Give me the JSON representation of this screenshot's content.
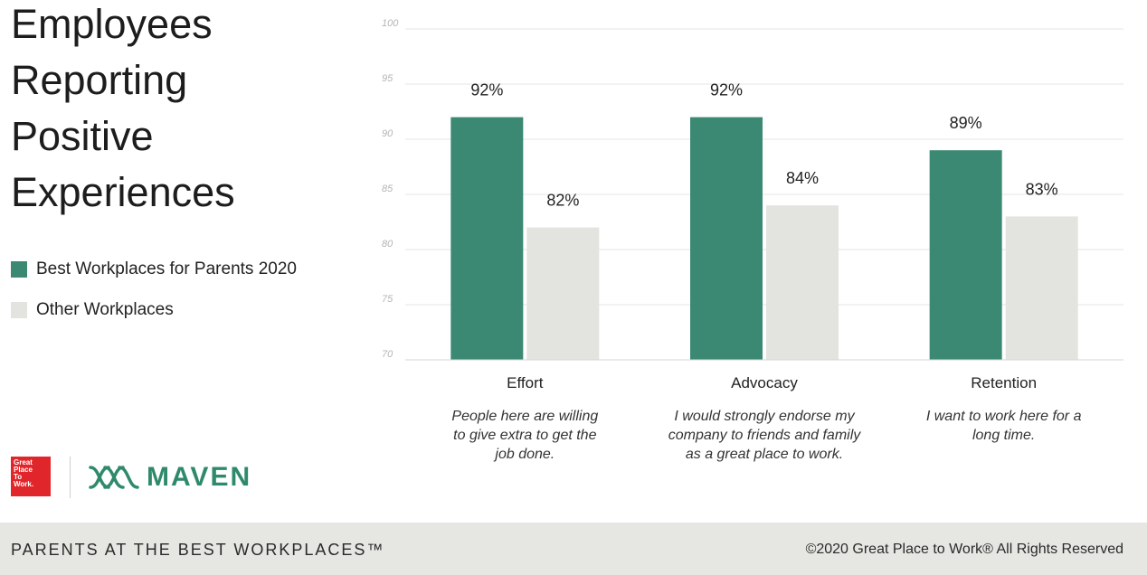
{
  "title_lines": [
    "Employees",
    "Reporting",
    "Positive",
    "Experiences"
  ],
  "legend": [
    {
      "label": "Best Workplaces for Parents 2020",
      "color": "#3b8873"
    },
    {
      "label": "Other Workplaces",
      "color": "#e3e3df"
    }
  ],
  "chart_data": {
    "type": "bar",
    "categories": [
      "Effort",
      "Advocacy",
      "Retention"
    ],
    "descriptions": [
      [
        "People here are willing",
        "to give extra to get the",
        "job done."
      ],
      [
        "I would strongly endorse my",
        "company to friends and family",
        "as a great place to work."
      ],
      [
        "I want to work here for a",
        "long time."
      ]
    ],
    "series": [
      {
        "name": "Best Workplaces for Parents 2020",
        "values": [
          92,
          92,
          89
        ],
        "labels": [
          "92%",
          "92%",
          "89%"
        ],
        "color": "#3b8873"
      },
      {
        "name": "Other Workplaces",
        "values": [
          82,
          84,
          83
        ],
        "labels": [
          "82%",
          "84%",
          "83%"
        ],
        "color": "#e3e3df"
      }
    ],
    "ylim": [
      70,
      100
    ],
    "yticks": [
      70,
      75,
      80,
      85,
      90,
      95,
      100
    ],
    "grid": true
  },
  "logos": {
    "gptw_lines": [
      "Great",
      "Place",
      "To",
      "Work."
    ],
    "maven_text": "MAVEN"
  },
  "footer": {
    "left_text": "PARENTS AT THE BEST WORKPLACES™",
    "right_text": "©2020 Great Place to Work® All Rights Reserved"
  }
}
